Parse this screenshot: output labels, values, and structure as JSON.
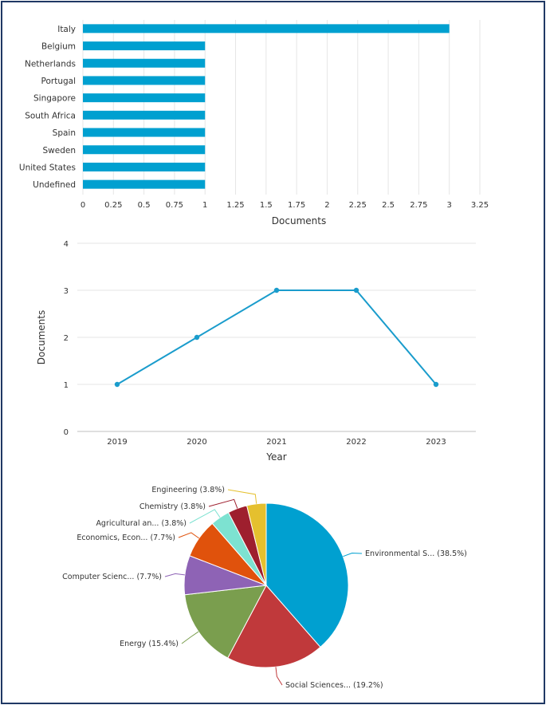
{
  "chart_data": [
    {
      "type": "bar",
      "orientation": "horizontal",
      "categories": [
        "Italy",
        "Belgium",
        "Netherlands",
        "Portugal",
        "Singapore",
        "South Africa",
        "Spain",
        "Sweden",
        "United States",
        "Undefined"
      ],
      "values": [
        3,
        1,
        1,
        1,
        1,
        1,
        1,
        1,
        1,
        1
      ],
      "xlabel": "Documents",
      "ylabel": "",
      "xlim": [
        0,
        3.25
      ],
      "ticks": [
        "0",
        "0.25",
        "0.5",
        "0.75",
        "1",
        "1.25",
        "1.5",
        "1.75",
        "2",
        "2.25",
        "2.5",
        "2.75",
        "3",
        "3.25"
      ],
      "color": "#00a0d0"
    },
    {
      "type": "line",
      "x": [
        "2019",
        "2020",
        "2021",
        "2022",
        "2023"
      ],
      "values": [
        1,
        2,
        3,
        3,
        1
      ],
      "xlabel": "Year",
      "ylabel": "Documents",
      "ylim": [
        0,
        4
      ],
      "yticks": [
        "0",
        "1",
        "2",
        "3",
        "4"
      ],
      "color": "#1a9ccc"
    },
    {
      "type": "pie",
      "slices": [
        {
          "label": "Environmental S... (38.5%)",
          "value": 38.5,
          "color": "#00a0d0"
        },
        {
          "label": "Social Sciences... (19.2%)",
          "value": 19.2,
          "color": "#c0393b"
        },
        {
          "label": "Energy (15.4%)",
          "value": 15.4,
          "color": "#7a9e4e"
        },
        {
          "label": "Computer Scienc... (7.7%)",
          "value": 7.7,
          "color": "#8e63b5"
        },
        {
          "label": "Economics, Econ... (7.7%)",
          "value": 7.7,
          "color": "#e0520c"
        },
        {
          "label": "Agricultural an... (3.8%)",
          "value": 3.8,
          "color": "#7de2d1"
        },
        {
          "label": "Chemistry (3.8%)",
          "value": 3.8,
          "color": "#9e1f2e"
        },
        {
          "label": "Engineering (3.8%)",
          "value": 3.8,
          "color": "#e5c02e"
        }
      ]
    }
  ]
}
